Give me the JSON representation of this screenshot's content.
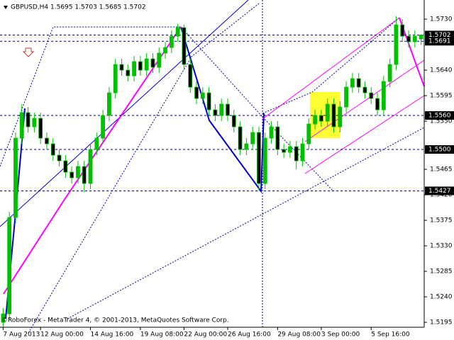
{
  "chart_data": {
    "type": "candlestick",
    "title": "GBPUSD,H4  1.5695 1.5703 1.5685 1.5702",
    "footer": "©RoboForex - MetaTrader 4, © 2001-2013, MetaQuotes Software Corp.",
    "categories": [
      "7 Aug 2013",
      null,
      null,
      null,
      null,
      null,
      "12 Aug 00:00",
      null,
      null,
      null,
      null,
      null,
      null,
      null,
      "14 Aug 16:00",
      null,
      null,
      null,
      null,
      null,
      null,
      null,
      "19 Aug 08:00",
      null,
      null,
      null,
      null,
      null,
      null,
      "22 Aug 00:00",
      null,
      null,
      null,
      null,
      null,
      null,
      "26 Aug 16:00",
      null,
      null,
      null,
      null,
      null,
      null,
      null,
      "29 Aug 08:00",
      null,
      null,
      null,
      null,
      null,
      null,
      "3 Sep 00:00",
      null,
      null,
      null,
      null,
      null,
      null,
      null,
      "5 Sep 16:00",
      null,
      null,
      null,
      null,
      null,
      null,
      null,
      null
    ],
    "open": [
      1.5195,
      1.521,
      1.538,
      1.552,
      1.5565,
      1.554,
      1.5555,
      1.552,
      1.551,
      1.549,
      1.548,
      1.546,
      1.545,
      1.547,
      1.544,
      1.55,
      1.552,
      1.556,
      1.56,
      1.565,
      1.564,
      1.563,
      1.5655,
      1.564,
      1.566,
      1.5645,
      1.567,
      1.568,
      1.57,
      1.5715,
      1.565,
      1.561,
      1.559,
      1.56,
      1.557,
      1.556,
      1.558,
      1.556,
      1.554,
      1.55,
      1.551,
      1.553,
      1.544,
      1.552,
      1.554,
      1.55,
      1.5495,
      1.5505,
      1.548,
      1.551,
      1.5545,
      1.556,
      1.555,
      1.558,
      1.554,
      1.5575,
      1.561,
      1.5625,
      1.561,
      1.56,
      1.559,
      1.557,
      1.562,
      1.565,
      1.572,
      1.57,
      1.569,
      1.5695
    ],
    "high": [
      1.522,
      1.539,
      1.553,
      1.558,
      1.5575,
      1.5565,
      1.5565,
      1.553,
      1.552,
      1.55,
      1.549,
      1.547,
      1.548,
      1.548,
      1.551,
      1.553,
      1.557,
      1.561,
      1.566,
      1.566,
      1.565,
      1.5665,
      1.5665,
      1.567,
      1.567,
      1.568,
      1.569,
      1.571,
      1.5722,
      1.572,
      1.566,
      1.562,
      1.561,
      1.561,
      1.558,
      1.559,
      1.559,
      1.557,
      1.555,
      1.552,
      1.554,
      1.554,
      1.553,
      1.555,
      1.555,
      1.551,
      1.5515,
      1.5515,
      1.552,
      1.5555,
      1.557,
      1.557,
      1.559,
      1.559,
      1.5585,
      1.562,
      1.5635,
      1.5635,
      1.562,
      1.561,
      1.56,
      1.563,
      1.566,
      1.5735,
      1.573,
      1.571,
      1.571,
      1.5703
    ],
    "low": [
      1.5185,
      1.52,
      1.537,
      1.551,
      1.553,
      1.553,
      1.551,
      1.55,
      1.548,
      1.547,
      1.545,
      1.544,
      1.544,
      1.5425,
      1.543,
      1.549,
      1.551,
      1.555,
      1.559,
      1.563,
      1.562,
      1.562,
      1.563,
      1.563,
      1.5635,
      1.5635,
      1.566,
      1.567,
      1.569,
      1.564,
      1.56,
      1.558,
      1.558,
      1.556,
      1.555,
      1.555,
      1.555,
      1.553,
      1.549,
      1.549,
      1.55,
      1.5427,
      1.543,
      1.551,
      1.549,
      1.5485,
      1.5485,
      1.5465,
      1.547,
      1.55,
      1.5535,
      1.554,
      1.554,
      1.553,
      1.553,
      1.5565,
      1.56,
      1.56,
      1.559,
      1.558,
      1.556,
      1.556,
      1.561,
      1.564,
      1.569,
      1.568,
      1.568,
      1.5685
    ],
    "close": [
      1.521,
      1.538,
      1.552,
      1.5565,
      1.554,
      1.5555,
      1.552,
      1.551,
      1.549,
      1.548,
      1.546,
      1.545,
      1.547,
      1.544,
      1.55,
      1.552,
      1.556,
      1.56,
      1.565,
      1.564,
      1.563,
      1.5655,
      1.564,
      1.566,
      1.5645,
      1.567,
      1.568,
      1.57,
      1.5715,
      1.565,
      1.561,
      1.559,
      1.56,
      1.557,
      1.556,
      1.558,
      1.556,
      1.554,
      1.55,
      1.551,
      1.553,
      1.544,
      1.552,
      1.554,
      1.55,
      1.5495,
      1.5505,
      1.548,
      1.551,
      1.5545,
      1.556,
      1.555,
      1.558,
      1.554,
      1.5575,
      1.561,
      1.5625,
      1.561,
      1.56,
      1.559,
      1.557,
      1.562,
      1.565,
      1.572,
      1.57,
      1.569,
      1.57,
      1.5702
    ],
    "up_color": "#00c000",
    "down_color": "#000000",
    "ylim": [
      1.51863,
      1.57638
    ],
    "yticks": [
      {
        "value": 1.573,
        "label": "1.5730"
      },
      {
        "value": 1.564,
        "label": "1.5640"
      },
      {
        "value": 1.5595,
        "label": "1.5595"
      },
      {
        "value": 1.555,
        "label": "1.5550"
      },
      {
        "value": 1.5465,
        "label": "1.5465"
      },
      {
        "value": 1.542,
        "label": "1.5420"
      },
      {
        "value": 1.5375,
        "label": "1.5375"
      },
      {
        "value": 1.533,
        "label": "1.5330"
      },
      {
        "value": 1.5285,
        "label": "1.5285"
      },
      {
        "value": 1.524,
        "label": "1.5240"
      },
      {
        "value": 1.5195,
        "label": "1.5195"
      }
    ],
    "price_levels": [
      {
        "value": 1.5702,
        "label": "1.5702"
      },
      {
        "value": 1.5691,
        "label": "1.5691"
      },
      {
        "value": 1.556,
        "label": "1.5560"
      },
      {
        "value": 1.55,
        "label": "1.5500"
      },
      {
        "value": 1.5427,
        "label": "1.5427"
      }
    ]
  }
}
